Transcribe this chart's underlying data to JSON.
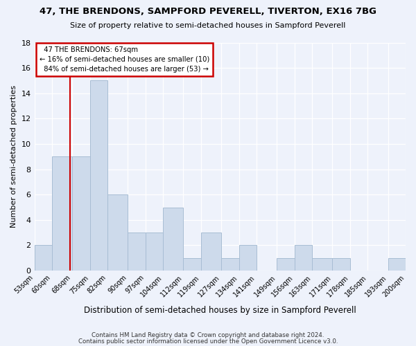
{
  "title": "47, THE BRENDONS, SAMPFORD PEVERELL, TIVERTON, EX16 7BG",
  "subtitle": "Size of property relative to semi-detached houses in Sampford Peverell",
  "xlabel": "Distribution of semi-detached houses by size in Sampford Peverell",
  "ylabel": "Number of semi-detached properties",
  "footer_line1": "Contains HM Land Registry data © Crown copyright and database right 2024.",
  "footer_line2": "Contains public sector information licensed under the Open Government Licence v3.0.",
  "bin_edges": [
    53,
    60,
    68,
    75,
    82,
    90,
    97,
    104,
    112,
    119,
    127,
    134,
    141,
    149,
    156,
    163,
    171,
    178,
    185,
    193,
    200
  ],
  "bar_heights": [
    2,
    9,
    9,
    15,
    6,
    3,
    3,
    5,
    1,
    3,
    1,
    2,
    0,
    1,
    2,
    1,
    1,
    0,
    0,
    1
  ],
  "property_sqm": 67,
  "property_label": "47 THE BRENDONS: 67sqm",
  "pct_smaller": 16,
  "pct_larger": 84,
  "n_smaller": 10,
  "n_larger": 53,
  "bar_color": "#cddaeb",
  "bar_edge_color": "#a8bdd4",
  "red_line_color": "#cc0000",
  "annotation_box_edge": "#cc0000",
  "background_color": "#eef2fb",
  "grid_color": "#ffffff",
  "ylim": [
    0,
    18
  ],
  "yticks": [
    0,
    2,
    4,
    6,
    8,
    10,
    12,
    14,
    16,
    18
  ]
}
